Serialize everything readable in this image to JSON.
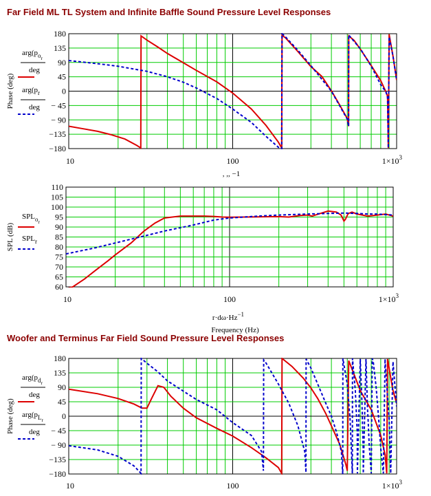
{
  "titles": {
    "top": "Far Field ML TL System and Infinite Baffle Sound Pressure Level Responses",
    "bottom": "Woofer and Terminus Far Field Sound Pressure Level Responses"
  },
  "colors": {
    "red": "#dd0000",
    "blue": "#0000cc",
    "grid": "#00cc00",
    "frame": "#000000"
  },
  "chart_data": [
    {
      "type": "line",
      "ylabel": "Phase (deg)",
      "xlabel": ", ,, −1",
      "xscale": "log",
      "xlim": [
        10,
        1000
      ],
      "ylim": [
        -180,
        180
      ],
      "yticks": [
        "180",
        "135",
        "90",
        "45",
        "0",
        "− 45",
        "− 90",
        "−135",
        "−180"
      ],
      "xticks": [
        "10",
        "100",
        "1×10"
      ],
      "xtick_exp": "3",
      "legend": [
        {
          "line1": "arg(p",
          "sub": "o",
          "subsub": "r",
          "line2": "deg"
        },
        {
          "line1": "arg(p",
          "sub": "r",
          "subsub": "",
          "line2": "deg"
        }
      ],
      "series": [
        {
          "name": "arg(p_o_r)/deg",
          "style": "solid",
          "color": "red",
          "x": [
            10,
            12,
            15,
            18,
            22,
            26,
            27.5,
            27.6,
            30,
            35,
            40,
            50,
            60,
            80,
            100,
            130,
            160,
            190,
            199,
            200,
            210,
            250,
            300,
            350,
            400,
            450,
            500,
            509,
            510,
            550,
            600,
            700,
            800,
            860,
            880,
            890,
            900,
            950,
            1000
          ],
          "y": [
            -110,
            -117,
            -126,
            -136,
            -150,
            -170,
            -178,
            173,
            160,
            138,
            118,
            89,
            65,
            29,
            -6,
            -56,
            -108,
            -160,
            -178,
            175,
            167,
            124,
            77,
            46,
            1,
            -44,
            -86,
            -110,
            173,
            159,
            132,
            80,
            33,
            -2,
            -16,
            -178,
            178,
            110,
            35
          ]
        },
        {
          "name": "arg(p_r)/deg",
          "style": "dashed",
          "color": "blue",
          "x": [
            10,
            15,
            20,
            30,
            40,
            50,
            60,
            80,
            100,
            130,
            160,
            190,
            199,
            200,
            210,
            250,
            300,
            400,
            500,
            509,
            510,
            600,
            700,
            800,
            860,
            880,
            890,
            900,
            950,
            1000
          ],
          "y": [
            96,
            86,
            78,
            62,
            45,
            28,
            10,
            -23,
            -56,
            -98,
            -142,
            -176,
            -180,
            180,
            170,
            128,
            80,
            0,
            -88,
            -110,
            176,
            133,
            78,
            20,
            -2,
            -20,
            -178,
            170,
            110,
            35
          ]
        }
      ]
    },
    {
      "type": "line",
      "ylabel": "SPL (dB)",
      "xlabel": "r·dω·Hz",
      "xlabel_exp": "−1",
      "xlabel2": "Frequency (Hz)",
      "xscale": "log",
      "xlim": [
        10,
        1000
      ],
      "ylim": [
        60,
        110
      ],
      "yticks": [
        "110",
        "105",
        "100",
        "95",
        "90",
        "85",
        "80",
        "75",
        "70",
        "65",
        "60"
      ],
      "xticks": [
        "10",
        "100",
        "1×10"
      ],
      "xtick_exp": "3",
      "legend": [
        {
          "line1": "SPL",
          "sub": "o",
          "subsub": "r"
        },
        {
          "line1": "SPL",
          "sub": "r",
          "subsub": ""
        }
      ],
      "series": [
        {
          "name": "SPL_o_r",
          "style": "solid",
          "color": "red",
          "x": [
            10,
            11,
            13,
            15,
            18,
            20,
            25,
            30,
            35,
            40,
            50,
            60,
            70,
            80,
            90,
            100,
            150,
            200,
            230,
            270,
            300,
            320,
            350,
            400,
            450,
            480,
            500,
            510,
            530,
            560,
            600,
            700,
            800,
            900,
            1000
          ],
          "y": [
            59,
            60,
            64,
            68,
            73,
            76,
            82,
            88,
            92,
            94.5,
            95.5,
            95.5,
            95.5,
            95.3,
            95,
            94.9,
            95.1,
            95.2,
            95,
            95.8,
            96,
            95.5,
            96.5,
            98,
            97.5,
            96,
            93,
            93.8,
            96.7,
            97.5,
            96.5,
            95.5,
            96,
            96.5,
            95.5
          ]
        },
        {
          "name": "SPL_r",
          "style": "dashed",
          "color": "blue",
          "x": [
            10,
            15,
            20,
            30,
            40,
            60,
            80,
            100,
            150,
            200,
            300,
            400,
            500,
            600,
            700,
            800,
            900,
            1000
          ],
          "y": [
            76.5,
            79.5,
            82,
            85.5,
            88,
            91,
            93.5,
            94.5,
            95.5,
            96,
            96.5,
            96.8,
            97,
            96.8,
            96.5,
            96.5,
            96.2,
            96
          ]
        }
      ]
    },
    {
      "type": "line",
      "ylabel": "Phase (deg)",
      "xlabel": "",
      "xscale": "log",
      "xlim": [
        10,
        1000
      ],
      "ylim": [
        -180,
        180
      ],
      "yticks": [
        "180",
        "135",
        "90",
        "45",
        "0",
        "− 45",
        "− 90",
        "−135",
        "−180"
      ],
      "xticks": [
        "10",
        "100",
        "1×10"
      ],
      "xtick_exp": "3",
      "legend": [
        {
          "line1": "arg(p",
          "sub": "d",
          "subsub": "r",
          "line2": "deg"
        },
        {
          "line1": "arg(p",
          "sub": "L",
          "subsub": "r",
          "line2": "deg"
        }
      ],
      "series": [
        {
          "name": "arg(p_d_r)/deg",
          "style": "solid",
          "color": "red",
          "x": [
            10,
            15,
            20,
            25,
            28,
            30,
            32,
            35,
            38,
            42,
            50,
            60,
            80,
            100,
            130,
            160,
            190,
            199,
            200,
            230,
            270,
            300,
            330,
            370,
            400,
            450,
            490,
            500,
            510,
            550,
            600,
            700,
            800,
            850,
            870,
            880,
            890,
            920,
            950,
            1000
          ],
          "y": [
            84,
            70,
            55,
            38,
            25,
            25,
            55,
            95,
            90,
            62,
            25,
            -5,
            -38,
            -62,
            -98,
            -130,
            -160,
            -178,
            180,
            155,
            118,
            88,
            55,
            8,
            -30,
            -88,
            -150,
            -170,
            173,
            130,
            80,
            20,
            -60,
            -120,
            -178,
            178,
            165,
            120,
            80,
            40
          ]
        },
        {
          "name": "arg(p_L_r)/deg",
          "style": "dashed",
          "color": "blue",
          "x": [
            10,
            15,
            20,
            25,
            27.6,
            27.7,
            30,
            35,
            40,
            60,
            80,
            100,
            130,
            150,
            154,
            154.5,
            160,
            190,
            220,
            250,
            275,
            280,
            280.5,
            300,
            330,
            370,
            400,
            430,
            460,
            469,
            470,
            500,
            520,
            537,
            538,
            560,
            575,
            576,
            600,
            615,
            625,
            626,
            650,
            665,
            670,
            680,
            700,
            710,
            720,
            750,
            780,
            800,
            830,
            850,
            851,
            870,
            880,
            900,
            920,
            950,
            1000
          ],
          "y": [
            -92,
            -105,
            -125,
            -155,
            -178,
            180,
            165,
            138,
            110,
            52,
            20,
            -20,
            -60,
            -110,
            -170,
            175,
            165,
            100,
            40,
            -30,
            -110,
            -175,
            178,
            150,
            100,
            40,
            0,
            -50,
            -110,
            -180,
            180,
            100,
            -10,
            -178,
            180,
            80,
            -50,
            -178,
            178,
            40,
            -100,
            -178,
            178,
            20,
            -10,
            -90,
            -178,
            180,
            170,
            90,
            -20,
            -100,
            -178,
            178,
            170,
            100,
            60,
            -10,
            -178,
            170,
            30
          ]
        }
      ]
    }
  ]
}
